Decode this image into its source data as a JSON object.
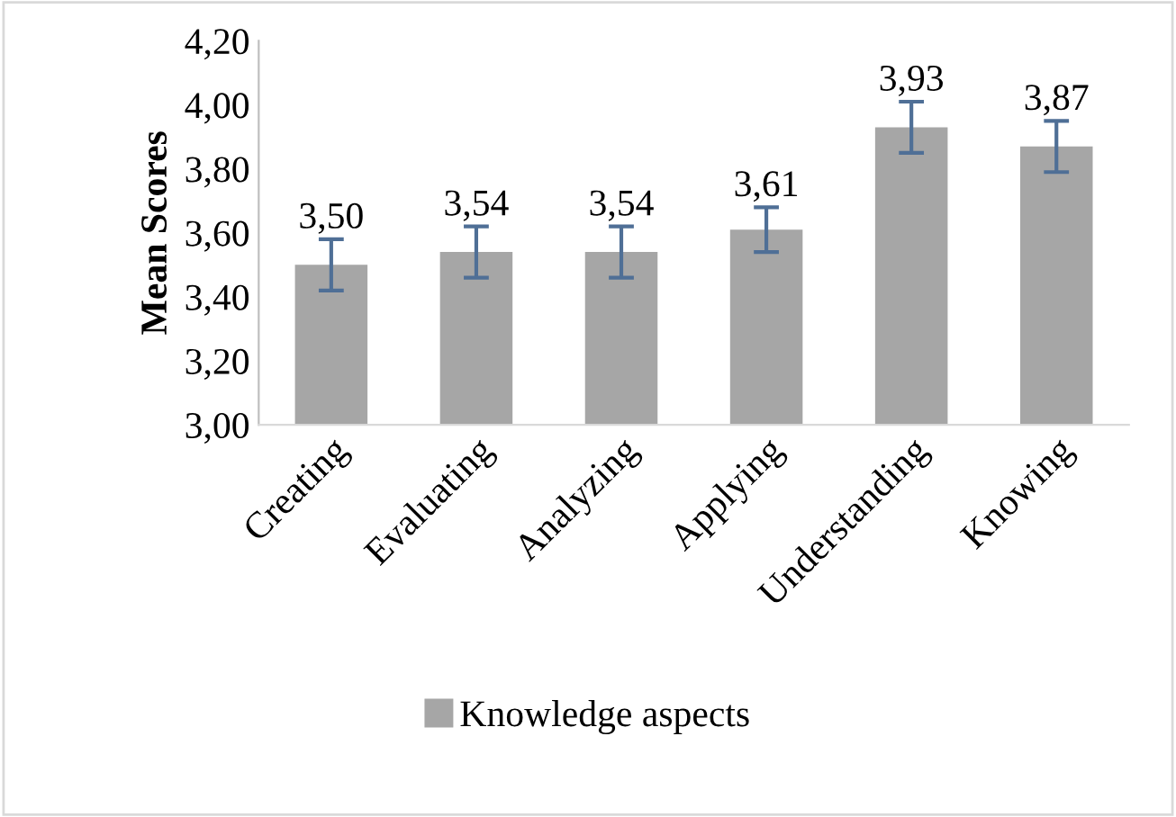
{
  "chart_data": {
    "type": "bar",
    "ylabel": "Mean Scores",
    "categories": [
      "Creating",
      "Evaluating",
      "Analyzing",
      "Applying",
      "Understanding",
      "Knowing"
    ],
    "series": [
      {
        "name": "Knowledge aspects",
        "color": "#a6a6a6",
        "values": [
          3.5,
          3.54,
          3.54,
          3.61,
          3.93,
          3.87
        ],
        "value_labels": [
          "3,50",
          "3,54",
          "3,54",
          "3,61",
          "3,93",
          "3,87"
        ],
        "errors": [
          0.08,
          0.08,
          0.08,
          0.07,
          0.08,
          0.08
        ]
      }
    ],
    "ylim": [
      3.0,
      4.2
    ],
    "yticks": [
      {
        "value": 3.0,
        "label": "3,00"
      },
      {
        "value": 3.2,
        "label": "3,20"
      },
      {
        "value": 3.4,
        "label": "3,40"
      },
      {
        "value": 3.6,
        "label": "3,60"
      },
      {
        "value": 3.8,
        "label": "3,80"
      },
      {
        "value": 4.0,
        "label": "4,00"
      },
      {
        "value": 4.2,
        "label": "4,20"
      }
    ],
    "legend": "bottom"
  }
}
